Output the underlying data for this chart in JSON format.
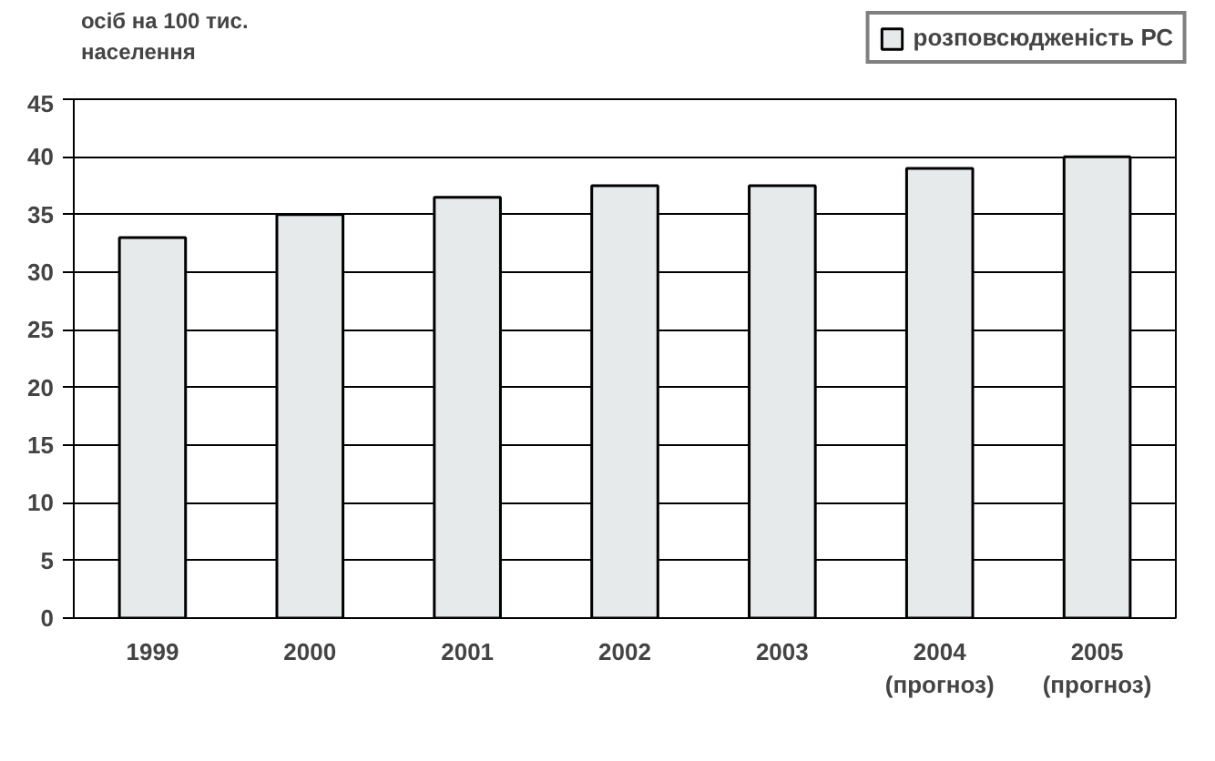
{
  "chart_data": {
    "type": "bar",
    "ylabel": "осіб на 100 тис.\nнаселення",
    "categories": [
      "1999",
      "2000",
      "2001",
      "2002",
      "2003",
      "2004\n(прогноз)",
      "2005\n(прогноз)"
    ],
    "series": [
      {
        "name": "розповсюдженість РС",
        "color": "#e6eaea",
        "values": [
          33,
          35,
          36.5,
          37.5,
          37.5,
          39,
          40
        ]
      }
    ],
    "ylim": [
      0,
      45
    ],
    "yticks": [
      0,
      5,
      10,
      15,
      20,
      25,
      30,
      35,
      40,
      45
    ],
    "grid": "y",
    "legend": "top right"
  }
}
